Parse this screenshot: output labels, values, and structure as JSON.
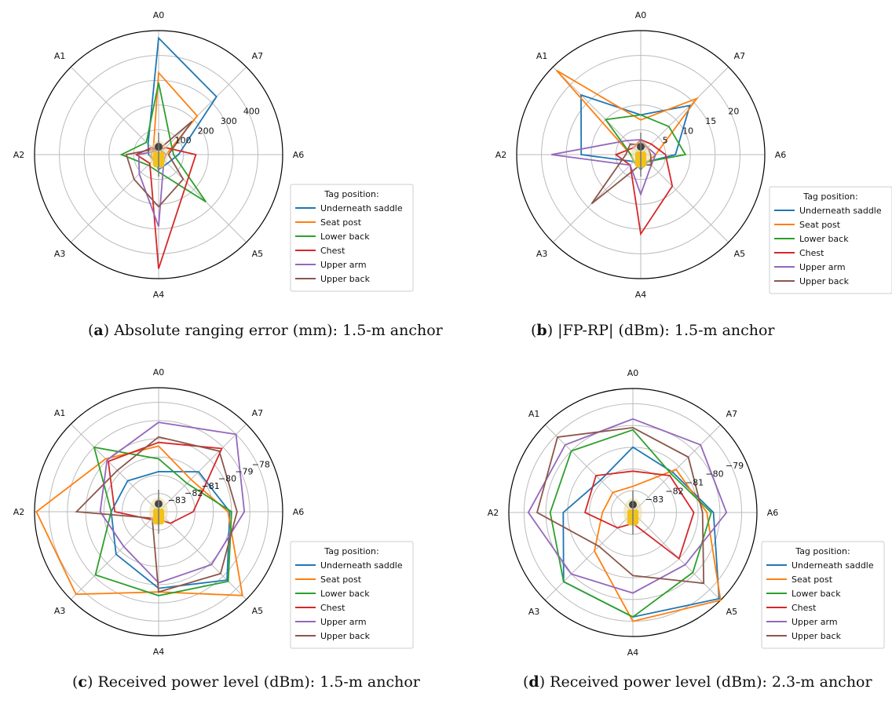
{
  "colors": {
    "series": [
      "#1f77b4",
      "#ff7f0e",
      "#2ca02c",
      "#d62728",
      "#9467bd",
      "#8c564b"
    ],
    "grid": "#bbbbbb",
    "frame": "#000000"
  },
  "legend": {
    "title": "Tag position:",
    "entries": [
      "Underneath saddle",
      "Seat post",
      "Lower back",
      "Chest",
      "Upper arm",
      "Upper back"
    ]
  },
  "angle_labels": [
    "A0",
    "A1",
    "A2",
    "A3",
    "A4",
    "A5",
    "A6",
    "A7"
  ],
  "captions": [
    {
      "letter": "a",
      "text": "Absolute ranging error (mm): 1.5-m anchor"
    },
    {
      "letter": "b",
      "text": "|FP-RP| (dBm): 1.5-m anchor"
    },
    {
      "letter": "c",
      "text": "Received power level (dBm): 1.5-m anchor"
    },
    {
      "letter": "d",
      "text": "Received power level (dBm): 2.3-m anchor"
    }
  ],
  "chart_data": [
    {
      "type": "radar",
      "title": "Absolute ranging error (mm): 1.5-m anchor",
      "categories": [
        "A0",
        "A7",
        "A6",
        "A5",
        "A4",
        "A3",
        "A2",
        "A1"
      ],
      "rlim": [
        0,
        500
      ],
      "rticks": [
        100,
        200,
        300,
        400
      ],
      "rtick_labels": [
        "100",
        "200",
        "300",
        "400"
      ],
      "series": [
        {
          "name": "Underneath saddle",
          "values": [
            470,
            330,
            80,
            50,
            60,
            30,
            40,
            60
          ]
        },
        {
          "name": "Seat post",
          "values": [
            330,
            220,
            30,
            30,
            30,
            30,
            30,
            30
          ]
        },
        {
          "name": "Lower back",
          "values": [
            290,
            70,
            60,
            270,
            70,
            60,
            150,
            70
          ]
        },
        {
          "name": "Chest",
          "values": [
            20,
            40,
            150,
            160,
            460,
            50,
            90,
            40
          ]
        },
        {
          "name": "Upper arm",
          "values": [
            20,
            20,
            30,
            30,
            290,
            110,
            80,
            20
          ]
        },
        {
          "name": "Upper back",
          "values": [
            20,
            190,
            40,
            140,
            210,
            140,
            130,
            30
          ]
        }
      ]
    },
    {
      "type": "radar",
      "title": "|FP-RP| (dBm): 1.5-m anchor",
      "categories": [
        "A0",
        "A7",
        "A6",
        "A5",
        "A4",
        "A3",
        "A2",
        "A1"
      ],
      "rlim": [
        0,
        25
      ],
      "rticks": [
        5,
        10,
        15,
        20
      ],
      "rtick_labels": [
        "5",
        "10",
        "15",
        "20"
      ],
      "series": [
        {
          "name": "Underneath saddle",
          "values": [
            8,
            14,
            7,
            2,
            3,
            2,
            12,
            17
          ]
        },
        {
          "name": "Seat post",
          "values": [
            7,
            16,
            3,
            2,
            2,
            2,
            2,
            24
          ]
        },
        {
          "name": "Lower back",
          "values": [
            8,
            8,
            9,
            2,
            2,
            2,
            2,
            10
          ]
        },
        {
          "name": "Chest",
          "values": [
            3,
            3,
            5,
            9,
            16,
            3,
            5,
            2
          ]
        },
        {
          "name": "Upper arm",
          "values": [
            3,
            2,
            3,
            3,
            8,
            3,
            18,
            4
          ]
        },
        {
          "name": "Upper back",
          "values": [
            2,
            2,
            2,
            3,
            2,
            14,
            3,
            3
          ]
        }
      ]
    },
    {
      "type": "radar",
      "title": "Received power level (dBm): 1.5-m anchor",
      "categories": [
        "A0",
        "A7",
        "A6",
        "A5",
        "A4",
        "A3",
        "A2",
        "A1"
      ],
      "rlim": [
        -84,
        -77.2
      ],
      "rticks": [
        -83,
        -82,
        -81,
        -80,
        -79,
        -78
      ],
      "rtick_labels": [
        "−83",
        "−82",
        "−81",
        "−80",
        "−79",
        "−78"
      ],
      "series": [
        {
          "name": "Underneath saddle",
          "values": [
            -81.8,
            -80.9,
            -80.1,
            -78.7,
            -79.8,
            -80.7,
            -81.4,
            -81.6
          ]
        },
        {
          "name": "Seat post",
          "values": [
            -80.4,
            -81.5,
            -80.2,
            -77.5,
            -79.6,
            -77.6,
            -77.3,
            -79.9
          ]
        },
        {
          "name": "Lower back",
          "values": [
            -81.1,
            -81.8,
            -80.0,
            -78.6,
            -79.4,
            -79.1,
            -81.4,
            -79.0
          ]
        },
        {
          "name": "Chest",
          "values": [
            -80.2,
            -79.1,
            -82.1,
            -83.1,
            -83.6,
            -83.4,
            -81.6,
            -80.1
          ]
        },
        {
          "name": "Upper arm",
          "values": [
            -79.1,
            -78.0,
            -79.3,
            -79.9,
            -80.1,
            -81.3,
            -80.8,
            -80.0
          ]
        },
        {
          "name": "Upper back",
          "values": [
            -79.9,
            -79.3,
            -79.7,
            -79.2,
            -79.6,
            -83.5,
            -79.5,
            -80.8
          ]
        }
      ]
    },
    {
      "type": "radar",
      "title": "Received power level (dBm): 2.3-m anchor",
      "categories": [
        "A0",
        "A7",
        "A6",
        "A5",
        "A4",
        "A3",
        "A2",
        "A1"
      ],
      "rlim": [
        -84,
        -78.3
      ],
      "rticks": [
        -83,
        -82,
        -81,
        -80,
        -79
      ],
      "rtick_labels": [
        "−83",
        "−82",
        "−81",
        "−80",
        "−79"
      ],
      "series": [
        {
          "name": "Underneath saddle",
          "values": [
            -81.0,
            -81.4,
            -80.3,
            -78.4,
            -79.2,
            -79.5,
            -80.8,
            -81.9
          ]
        },
        {
          "name": "Seat post",
          "values": [
            -82.8,
            -81.2,
            -80.6,
            -78.3,
            -79.0,
            -81.5,
            -82.6,
            -82.7
          ]
        },
        {
          "name": "Lower back",
          "values": [
            -80.2,
            -81.5,
            -80.4,
            -80.1,
            -79.2,
            -79.5,
            -80.2,
            -80.0
          ]
        },
        {
          "name": "Chest",
          "values": [
            -82.1,
            -81.6,
            -81.2,
            -81.0,
            -83.5,
            -83.0,
            -81.8,
            -81.6
          ]
        },
        {
          "name": "Upper arm",
          "values": [
            -79.7,
            -79.6,
            -79.7,
            -80.6,
            -80.3,
            -80.0,
            -79.2,
            -79.6
          ]
        },
        {
          "name": "Upper back",
          "values": [
            -80.1,
            -80.4,
            -80.8,
            -79.4,
            -81.1,
            -81.8,
            -79.6,
            -79.1
          ]
        }
      ]
    }
  ]
}
